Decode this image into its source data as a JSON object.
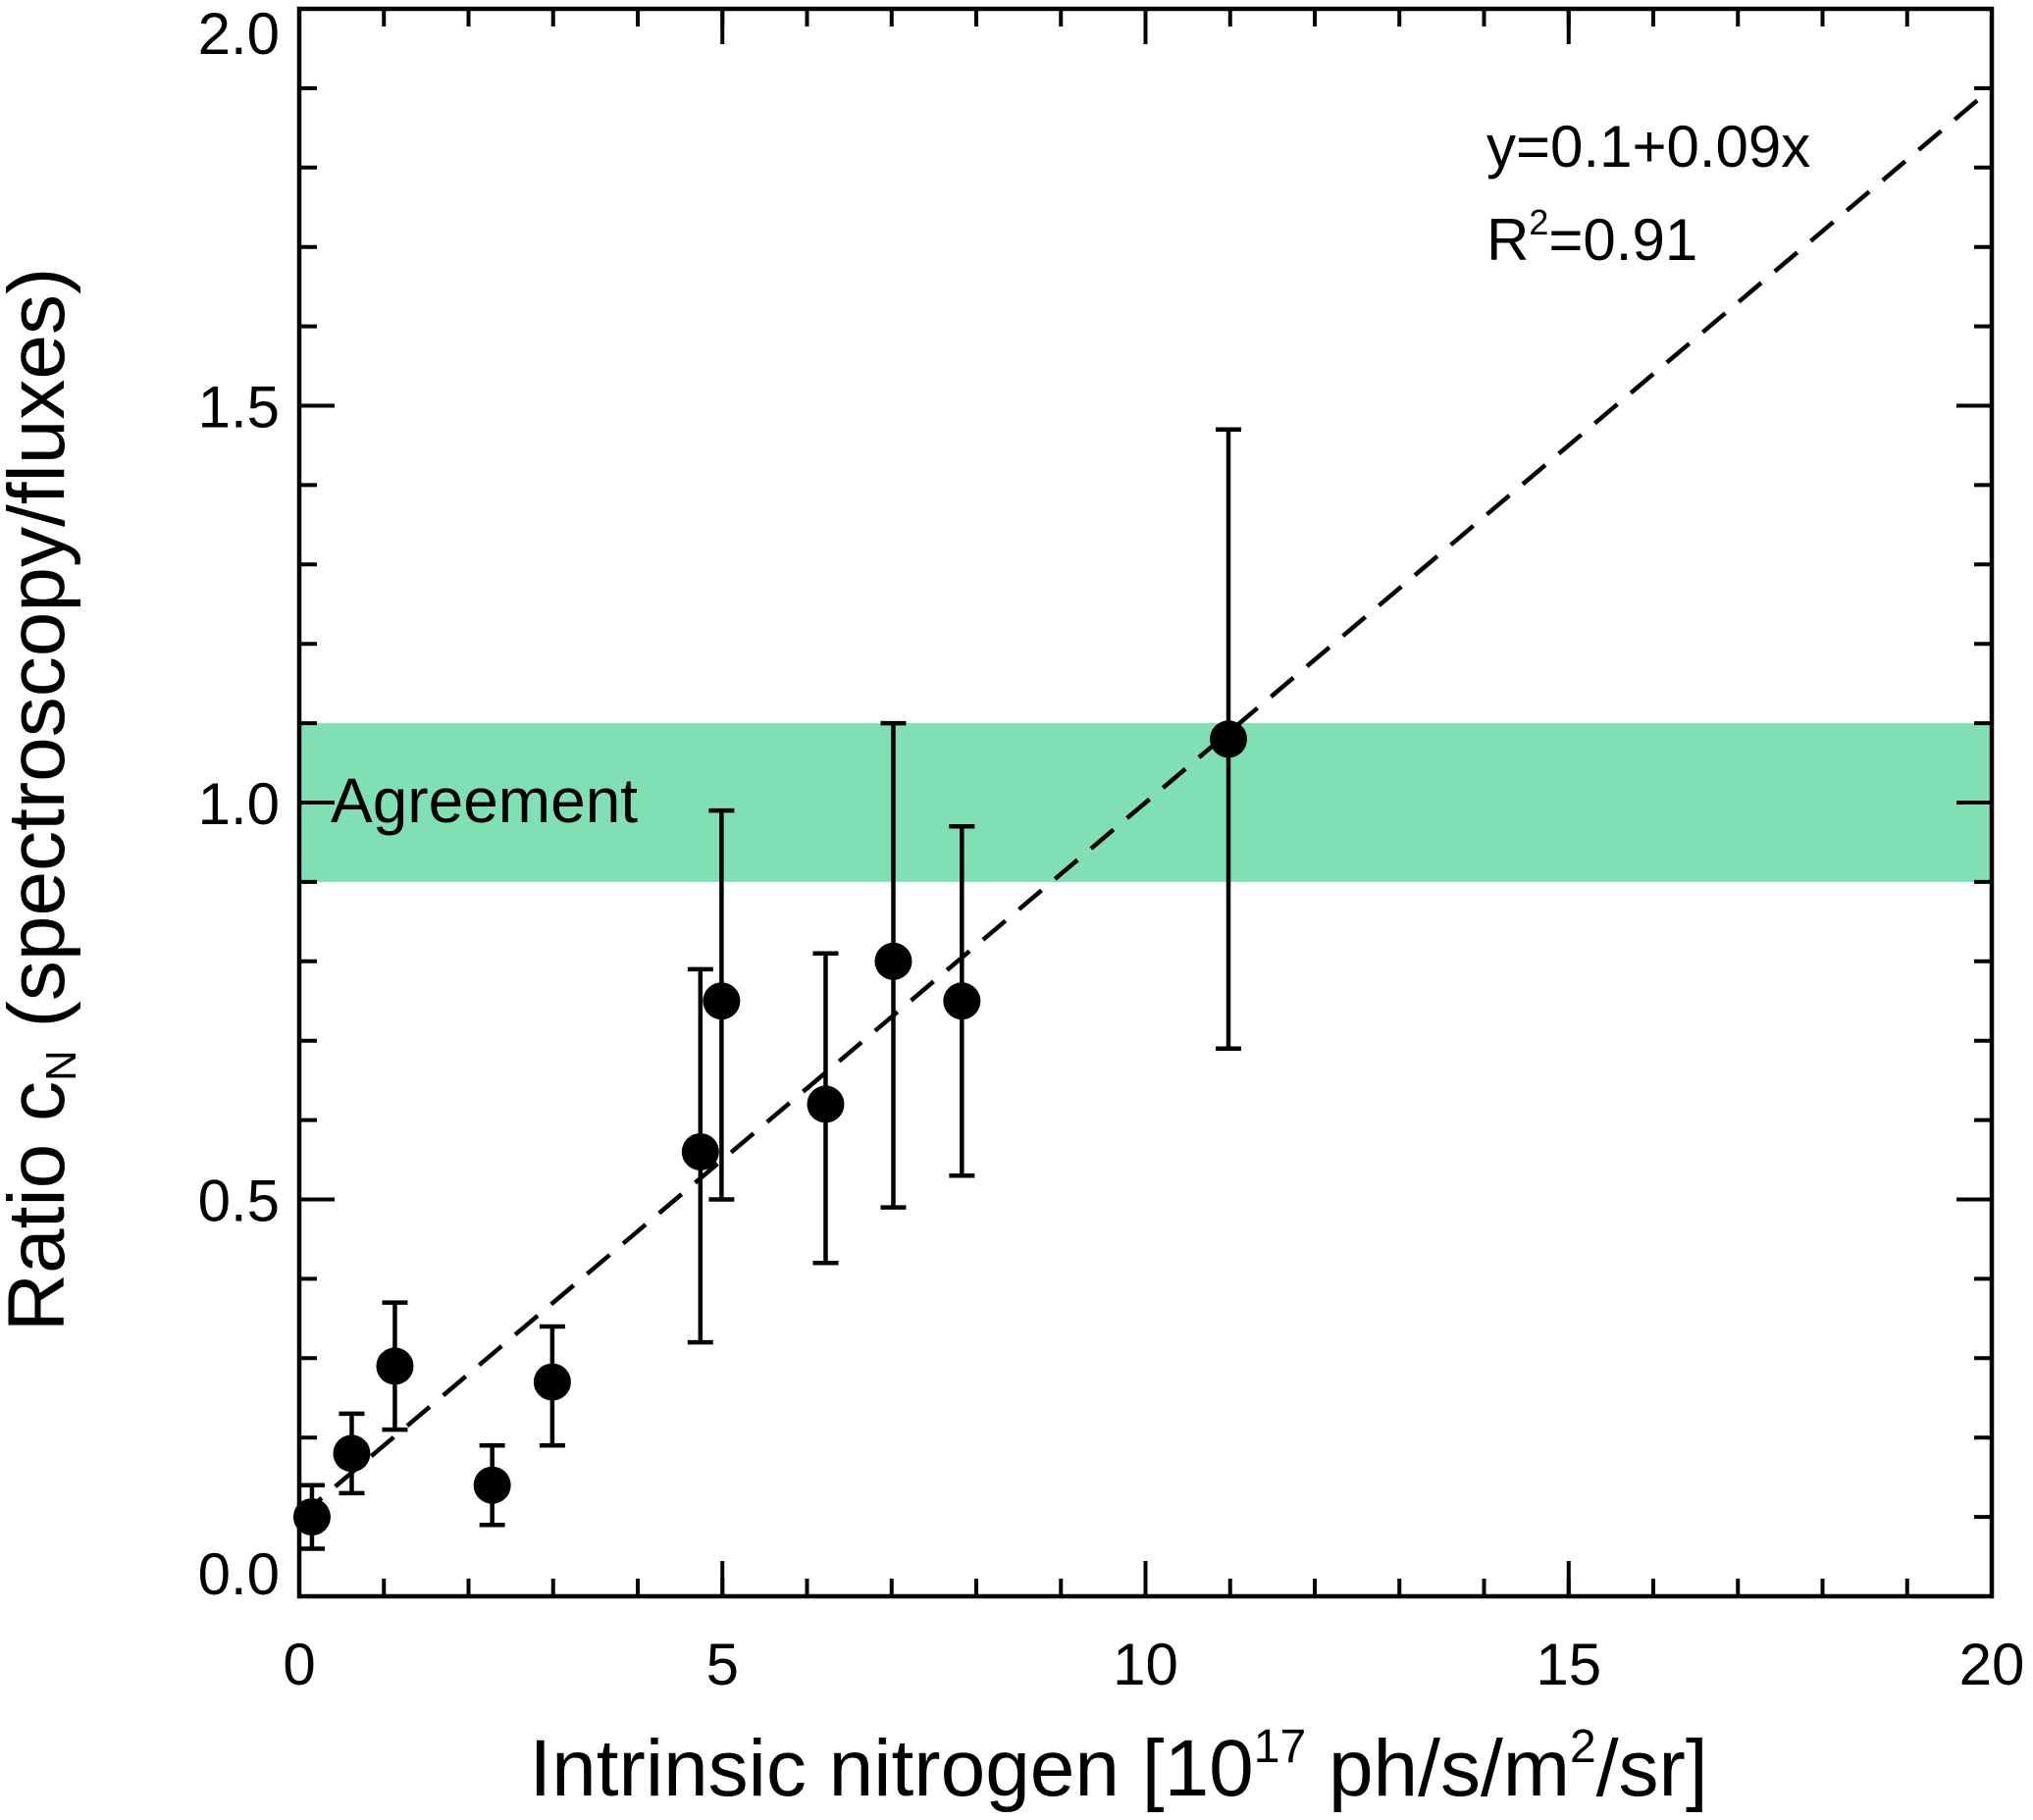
{
  "chart_data": {
    "type": "scatter",
    "xlabel": {
      "main": "Intrinsic nitrogen [10",
      "exp": "17",
      "after": " ph/s/m",
      "exp2": "2",
      "end": "/sr]"
    },
    "ylabel": {
      "main": "Ratio c",
      "sub": "N",
      "end": " (spectroscopy/fluxes)"
    },
    "xlim": [
      0,
      20
    ],
    "ylim": [
      0,
      2
    ],
    "xticks": [
      0,
      5,
      10,
      15,
      20
    ],
    "xtick_labels": [
      "0",
      "5",
      "10",
      "15",
      "20"
    ],
    "yticks": [
      0,
      0.5,
      1.0,
      1.5,
      2.0
    ],
    "ytick_labels": [
      "0.0",
      "0.5",
      "1.0",
      "1.5",
      "2.0"
    ],
    "x_minor_step": 1,
    "y_minor_step": 0.1,
    "grid": false,
    "band": {
      "y0": 0.9,
      "y1": 1.1,
      "label": "Agreement",
      "color": "#80e0b4"
    },
    "fit_line": {
      "intercept": 0.1,
      "slope": 0.09,
      "x_range": [
        0,
        20
      ],
      "style": "dashed",
      "equation": "y=0.1+0.09x",
      "r2_label": "R",
      "r2_exp": "2",
      "r2_value": "=0.91"
    },
    "points": [
      {
        "x": 0.15,
        "y": 0.1,
        "ylo": 0.06,
        "yhi": 0.14
      },
      {
        "x": 0.62,
        "y": 0.18,
        "ylo": 0.13,
        "yhi": 0.23
      },
      {
        "x": 1.13,
        "y": 0.29,
        "ylo": 0.21,
        "yhi": 0.37
      },
      {
        "x": 2.28,
        "y": 0.14,
        "ylo": 0.09,
        "yhi": 0.19
      },
      {
        "x": 2.99,
        "y": 0.27,
        "ylo": 0.19,
        "yhi": 0.34
      },
      {
        "x": 4.74,
        "y": 0.56,
        "ylo": 0.32,
        "yhi": 0.79
      },
      {
        "x": 4.99,
        "y": 0.75,
        "ylo": 0.5,
        "yhi": 0.99
      },
      {
        "x": 6.22,
        "y": 0.62,
        "ylo": 0.42,
        "yhi": 0.81
      },
      {
        "x": 7.02,
        "y": 0.8,
        "ylo": 0.49,
        "yhi": 1.1
      },
      {
        "x": 7.83,
        "y": 0.75,
        "ylo": 0.53,
        "yhi": 0.97
      },
      {
        "x": 10.98,
        "y": 1.08,
        "ylo": 0.69,
        "yhi": 1.47
      }
    ]
  }
}
